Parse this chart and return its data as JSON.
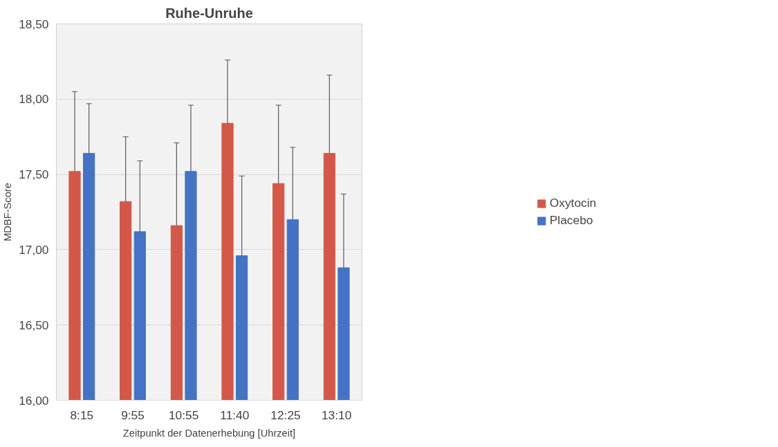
{
  "chart_data": {
    "type": "bar",
    "title": "Ruhe-Unruhe",
    "xlabel": "Zeitpunkt der Datenerhebung [Uhrzeit]",
    "ylabel": "MDBF-Score",
    "categories": [
      "8:15",
      "9:55",
      "10:55",
      "11:40",
      "12:25",
      "13:10"
    ],
    "series": [
      {
        "name": "Oxytocin",
        "color": "#d35849",
        "values": [
          17.52,
          17.32,
          17.16,
          17.84,
          17.44,
          17.64
        ],
        "errors": [
          0.53,
          0.43,
          0.55,
          0.42,
          0.52,
          0.52
        ]
      },
      {
        "name": "Placebo",
        "color": "#4472c4",
        "values": [
          17.64,
          17.12,
          17.52,
          16.96,
          17.2,
          16.88
        ],
        "errors": [
          0.33,
          0.47,
          0.44,
          0.53,
          0.48,
          0.49
        ]
      }
    ],
    "ylim": [
      16,
      18.5
    ],
    "yticks": [
      {
        "value": 16,
        "label": "16,00"
      },
      {
        "value": 16.5,
        "label": "16,50"
      },
      {
        "value": 17,
        "label": "17,00"
      },
      {
        "value": 17.5,
        "label": "17,50"
      },
      {
        "value": 18,
        "label": "18,00"
      },
      {
        "value": 18.5,
        "label": "18,50"
      }
    ],
    "grid": "y",
    "legend": "right"
  }
}
